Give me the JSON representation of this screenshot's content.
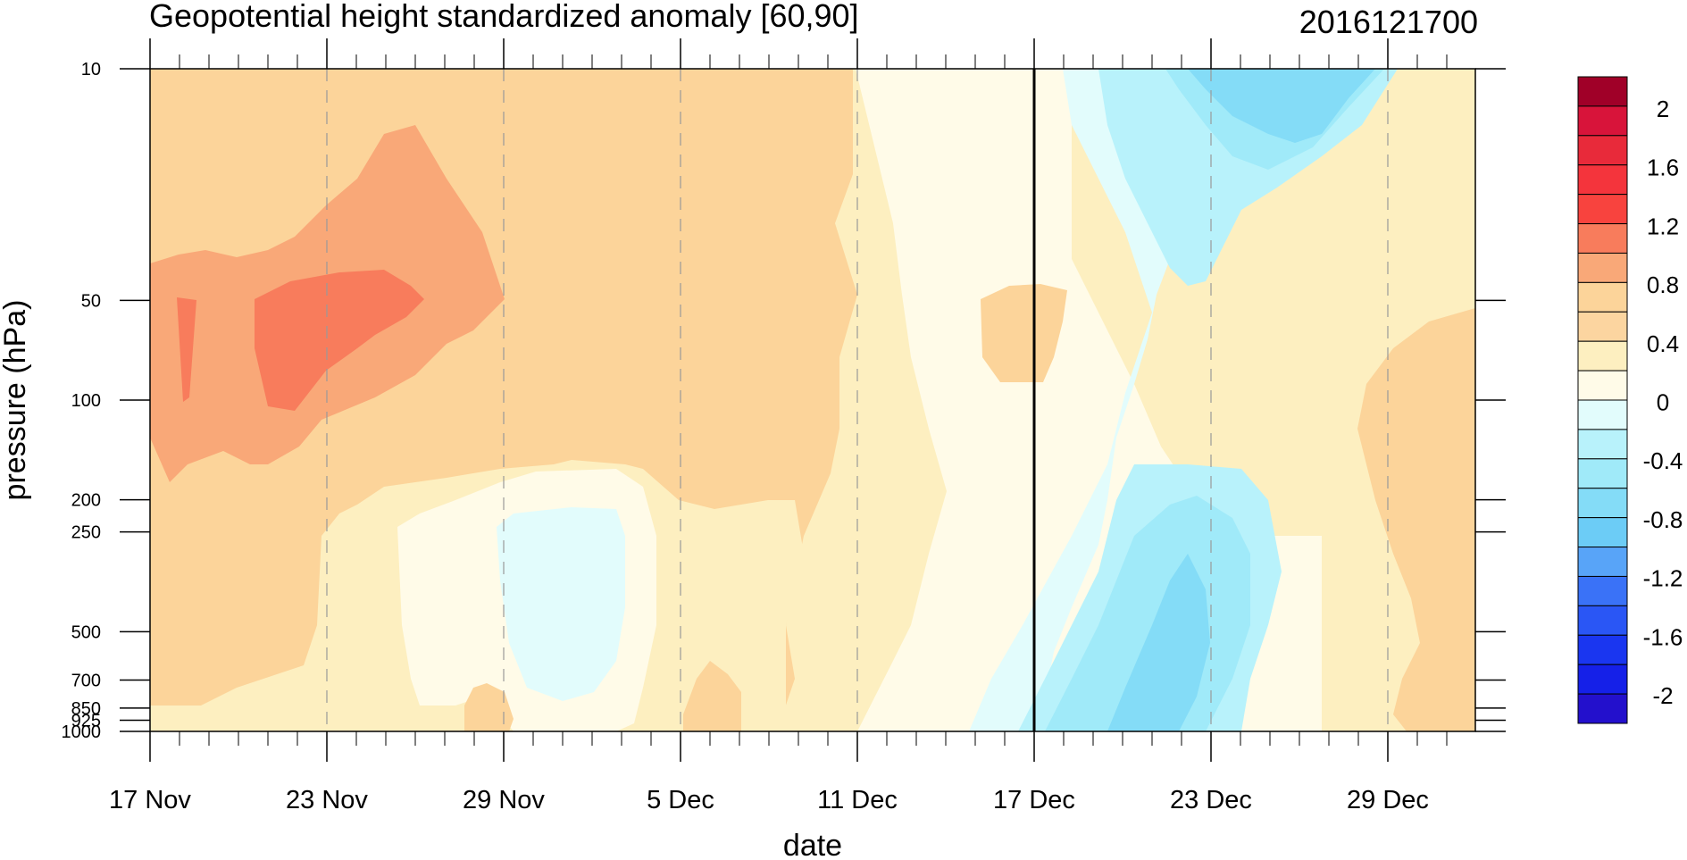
{
  "chart_data": {
    "type": "heatmap",
    "title": "Geopotential height standardized anomaly [60,90]",
    "right_title": "2016121700",
    "xlabel": "date",
    "ylabel": "pressure (hPa)",
    "x_tick_labels": [
      "17 Nov",
      "23 Nov",
      "29 Nov",
      "5 Dec",
      "11 Dec",
      "17 Dec",
      "23 Dec",
      "29 Dec"
    ],
    "x_range": [
      "17 Nov",
      "1 Jan"
    ],
    "y_scale": "log",
    "y_inverted": true,
    "y_ticks": [
      10,
      50,
      100,
      200,
      250,
      500,
      700,
      850,
      925,
      1000
    ],
    "y_tick_labels": [
      "10",
      "50",
      "100",
      "200",
      "250",
      "500",
      "700",
      "850",
      "925",
      "1000"
    ],
    "ylim": [
      1000,
      10
    ],
    "marked_date": "17 Dec",
    "grid": "dashed vertical lines at date ticks",
    "colorbar": {
      "placement": "right",
      "labels": [
        "2",
        "1.6",
        "1.2",
        "0.8",
        "0.4",
        "0",
        "-0.4",
        "-0.8",
        "-1.2",
        "-1.6",
        "-2"
      ],
      "levels": [
        -2.2,
        -2.0,
        -1.8,
        -1.6,
        -1.4,
        -1.2,
        -1.0,
        -0.8,
        -0.6,
        -0.4,
        -0.2,
        0,
        0.2,
        0.4,
        0.6,
        0.8,
        1.0,
        1.2,
        1.4,
        1.6,
        1.8,
        2.0,
        2.2
      ],
      "colors": [
        "#2310cc",
        "#1520e8",
        "#1a36f0",
        "#2a56f5",
        "#3a72f7",
        "#58a4f8",
        "#6cccf6",
        "#84dcf7",
        "#a0eaf9",
        "#b8f2fb",
        "#e2fcfc",
        "#fffbe8",
        "#fdefc0",
        "#fcd5a0",
        "#fcd49a",
        "#f9a878",
        "#f87c5c",
        "#f8433e",
        "#f4343c",
        "#e82a3a",
        "#d8143a",
        "#a00028"
      ]
    },
    "regions": [
      {
        "value": 0.3,
        "description": "early period, upper levels"
      },
      {
        "value": 0.9,
        "description": "23 Nov stratosphere maximum"
      },
      {
        "value": 1.1,
        "description": "peak near 23 Nov, 50-100 hPa"
      },
      {
        "value": -0.2,
        "description": "1 Dec, 250-800 hPa"
      },
      {
        "value": 0.5,
        "description": "15-17 Dec, 50-100 hPa"
      },
      {
        "value": -0.7,
        "description": "24 Dec, 10-30 hPa"
      },
      {
        "value": -0.7,
        "description": "21 Dec, 300-1000 hPa"
      }
    ]
  }
}
